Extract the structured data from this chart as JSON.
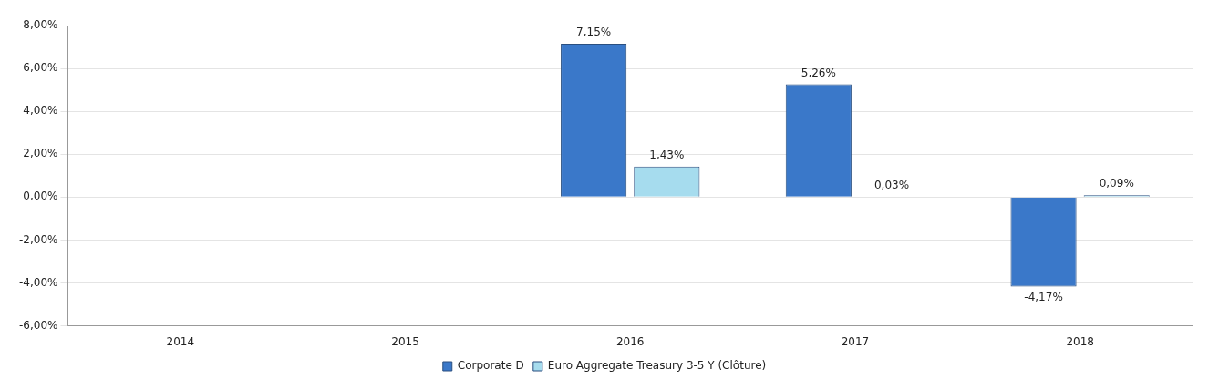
{
  "chart_data": {
    "type": "bar",
    "categories": [
      "2014",
      "2015",
      "2016",
      "2017",
      "2018"
    ],
    "series": [
      {
        "name": "Corporate D",
        "color": "#3a78c9",
        "values": [
          null,
          null,
          7.15,
          5.26,
          -4.17
        ],
        "value_labels": [
          null,
          null,
          "7,15%",
          "5,26%",
          "-4,17%"
        ]
      },
      {
        "name": "Euro Aggregate Treasury 3-5 Y (Clôture)",
        "color": "#a6dcee",
        "values": [
          null,
          null,
          1.43,
          0.03,
          0.09
        ],
        "value_labels": [
          null,
          null,
          "1,43%",
          "0,03%",
          "0,09%"
        ]
      }
    ],
    "ylim": [
      -6,
      8
    ],
    "yticks": [
      {
        "value": -6,
        "label": "-6,00%"
      },
      {
        "value": -4,
        "label": "-4,00%"
      },
      {
        "value": -2,
        "label": "-2,00%"
      },
      {
        "value": 0,
        "label": "0,00%"
      },
      {
        "value": 2,
        "label": "2,00%"
      },
      {
        "value": 4,
        "label": "4,00%"
      },
      {
        "value": 6,
        "label": "6,00%"
      },
      {
        "value": 8,
        "label": "8,00%"
      }
    ],
    "grid": "y",
    "legend": "bottom"
  }
}
